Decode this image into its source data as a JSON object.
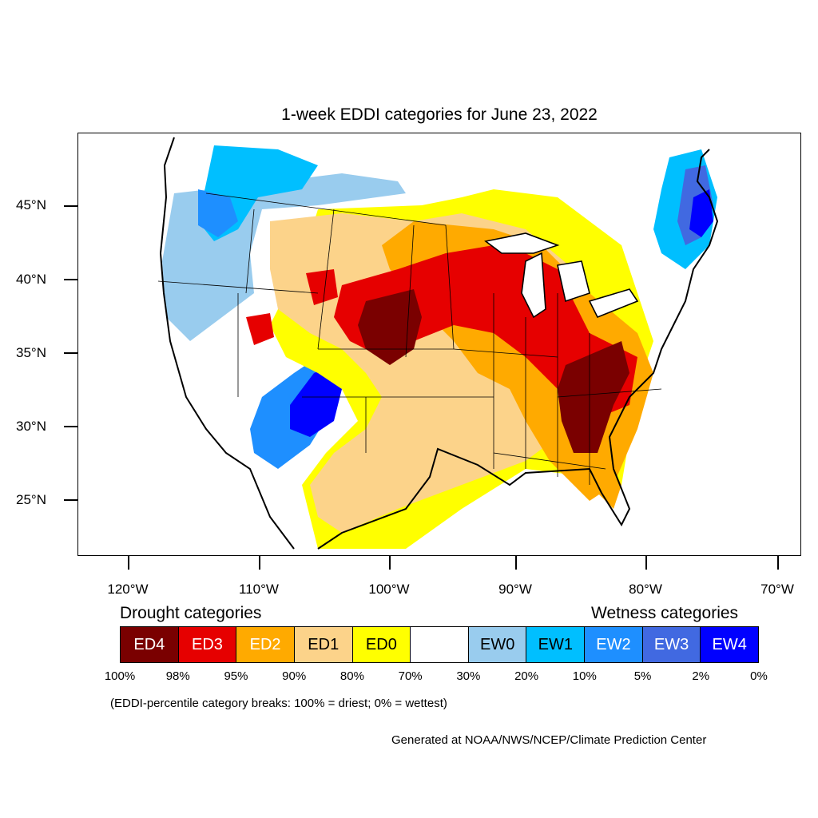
{
  "title": "1-week EDDI categories for June 23, 2022",
  "lat_labels": [
    "45°N",
    "40°N",
    "35°N",
    "30°N",
    "25°N"
  ],
  "lon_labels": [
    "120°W",
    "110°W",
    "100°W",
    "90°W",
    "80°W",
    "70°W"
  ],
  "legend": {
    "drought_heading": "Drought categories",
    "wetness_heading": "Wetness categories",
    "categories": [
      {
        "label": "ED4",
        "color": "#7a0000",
        "text_color": "#ffffff"
      },
      {
        "label": "ED3",
        "color": "#e60000",
        "text_color": "#ffffff"
      },
      {
        "label": "ED2",
        "color": "#ffaa00",
        "text_color": "#ffffff"
      },
      {
        "label": "ED1",
        "color": "#fcd38a",
        "text_color": "#000000"
      },
      {
        "label": "ED0",
        "color": "#ffff00",
        "text_color": "#000000"
      },
      {
        "label": "",
        "color": "#ffffff",
        "text_color": "#000000"
      },
      {
        "label": "EW0",
        "color": "#99ccee",
        "text_color": "#000000"
      },
      {
        "label": "EW1",
        "color": "#00bfff",
        "text_color": "#000000"
      },
      {
        "label": "EW2",
        "color": "#1e8fff",
        "text_color": "#ffffff"
      },
      {
        "label": "EW3",
        "color": "#4169e1",
        "text_color": "#ffffff"
      },
      {
        "label": "EW4",
        "color": "#0000ff",
        "text_color": "#ffffff"
      }
    ],
    "breaks": [
      "100%",
      "98%",
      "95%",
      "90%",
      "80%",
      "70%",
      "30%",
      "20%",
      "10%",
      "5%",
      "2%",
      "0%"
    ]
  },
  "note": "(EDDI-percentile category breaks: 100% = driest; 0% = wettest)",
  "credit": "Generated at NOAA/NWS/NCEP/Climate Prediction Center"
}
